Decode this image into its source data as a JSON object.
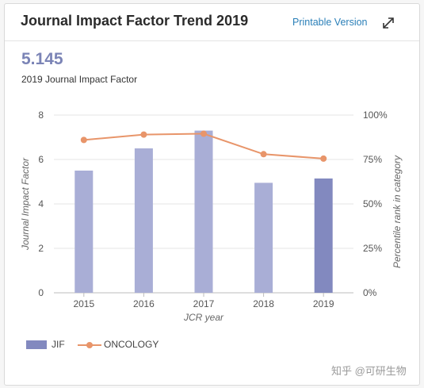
{
  "header": {
    "title": "Journal Impact Factor Trend 2019",
    "printable_label": "Printable Version",
    "expand_icon": "expand-icon"
  },
  "metric": {
    "value": "5.145",
    "label": "2019 Journal Impact Factor"
  },
  "chart_data": {
    "type": "bar",
    "categories": [
      "2015",
      "2016",
      "2017",
      "2018",
      "2019"
    ],
    "series": [
      {
        "name": "JIF",
        "type": "bar",
        "axis": "left",
        "values": [
          5.5,
          6.5,
          7.3,
          4.95,
          5.145
        ],
        "colors": [
          "#a9aed6",
          "#a9aed6",
          "#a9aed6",
          "#a9aed6",
          "#8289bf"
        ]
      },
      {
        "name": "ONCOLOGY",
        "type": "line",
        "axis": "right",
        "values": [
          86,
          89,
          89.5,
          78,
          75.5
        ],
        "color": "#e8956a"
      }
    ],
    "xlabel": "JCR year",
    "ylabel": "Journal Impact Factor",
    "ylim": [
      0,
      8
    ],
    "yticks": [
      "0",
      "2",
      "4",
      "6",
      "8"
    ],
    "y2label": "Percentile rank in category",
    "y2lim": [
      0,
      100
    ],
    "y2ticks": [
      "0%",
      "25%",
      "50%",
      "75%",
      "100%"
    ],
    "grid": true,
    "legend": "bottom-left"
  },
  "legend": {
    "jif_label": "JIF",
    "oncology_label": "ONCOLOGY"
  },
  "watermark": "知乎 @可研生物"
}
